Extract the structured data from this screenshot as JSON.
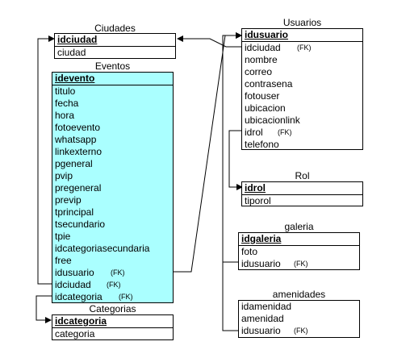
{
  "diagram": {
    "ciudades": {
      "title": "Ciudades",
      "fields": [
        {
          "name": "idciudad",
          "pk": true,
          "fk": ""
        },
        {
          "name": "ciudad",
          "pk": false,
          "fk": ""
        }
      ]
    },
    "eventos": {
      "title": "Eventos",
      "fields": [
        {
          "name": "idevento",
          "pk": true,
          "fk": ""
        },
        {
          "name": "titulo",
          "pk": false,
          "fk": ""
        },
        {
          "name": "fecha",
          "pk": false,
          "fk": ""
        },
        {
          "name": "hora",
          "pk": false,
          "fk": ""
        },
        {
          "name": "fotoevento",
          "pk": false,
          "fk": ""
        },
        {
          "name": "whatsapp",
          "pk": false,
          "fk": ""
        },
        {
          "name": "linkexterno",
          "pk": false,
          "fk": ""
        },
        {
          "name": "pgeneral",
          "pk": false,
          "fk": ""
        },
        {
          "name": "pvip",
          "pk": false,
          "fk": ""
        },
        {
          "name": "pregeneral",
          "pk": false,
          "fk": ""
        },
        {
          "name": "previp",
          "pk": false,
          "fk": ""
        },
        {
          "name": "tprincipal",
          "pk": false,
          "fk": ""
        },
        {
          "name": "tsecundario",
          "pk": false,
          "fk": ""
        },
        {
          "name": "tpie",
          "pk": false,
          "fk": ""
        },
        {
          "name": "idcategoriasecundaria",
          "pk": false,
          "fk": ""
        },
        {
          "name": "free",
          "pk": false,
          "fk": ""
        },
        {
          "name": "idusuario",
          "pk": false,
          "fk": "(FK)"
        },
        {
          "name": "idciudad",
          "pk": false,
          "fk": "(FK)"
        },
        {
          "name": "idcategoria",
          "pk": false,
          "fk": "(FK)"
        }
      ]
    },
    "categorias": {
      "title": "Categorias",
      "fields": [
        {
          "name": "idcategoria",
          "pk": true,
          "fk": ""
        },
        {
          "name": "categoria",
          "pk": false,
          "fk": ""
        }
      ]
    },
    "usuarios": {
      "title": "Usuarios",
      "fields": [
        {
          "name": "idusuario",
          "pk": true,
          "fk": ""
        },
        {
          "name": "idciudad",
          "pk": false,
          "fk": "(FK)"
        },
        {
          "name": "nombre",
          "pk": false,
          "fk": ""
        },
        {
          "name": "correo",
          "pk": false,
          "fk": ""
        },
        {
          "name": "contrasena",
          "pk": false,
          "fk": ""
        },
        {
          "name": "fotouser",
          "pk": false,
          "fk": ""
        },
        {
          "name": "ubicacion",
          "pk": false,
          "fk": ""
        },
        {
          "name": "ubicacionlink",
          "pk": false,
          "fk": ""
        },
        {
          "name": "idrol",
          "pk": false,
          "fk": "(FK)"
        },
        {
          "name": "telefono",
          "pk": false,
          "fk": ""
        }
      ]
    },
    "rol": {
      "title": "Rol",
      "fields": [
        {
          "name": "idrol",
          "pk": true,
          "fk": ""
        },
        {
          "name": "tiporol",
          "pk": false,
          "fk": ""
        }
      ]
    },
    "galeria": {
      "title": "galeria",
      "fields": [
        {
          "name": "idgaleria",
          "pk": true,
          "fk": ""
        },
        {
          "name": "foto",
          "pk": false,
          "fk": ""
        },
        {
          "name": "idusuario",
          "pk": false,
          "fk": "(FK)"
        }
      ]
    },
    "amenidades": {
      "title": "amenidades",
      "fields": [
        {
          "name": "idamenidad",
          "pk": false,
          "fk": ""
        },
        {
          "name": "amenidad",
          "pk": false,
          "fk": ""
        },
        {
          "name": "idusuario",
          "pk": false,
          "fk": "(FK)"
        }
      ]
    }
  }
}
